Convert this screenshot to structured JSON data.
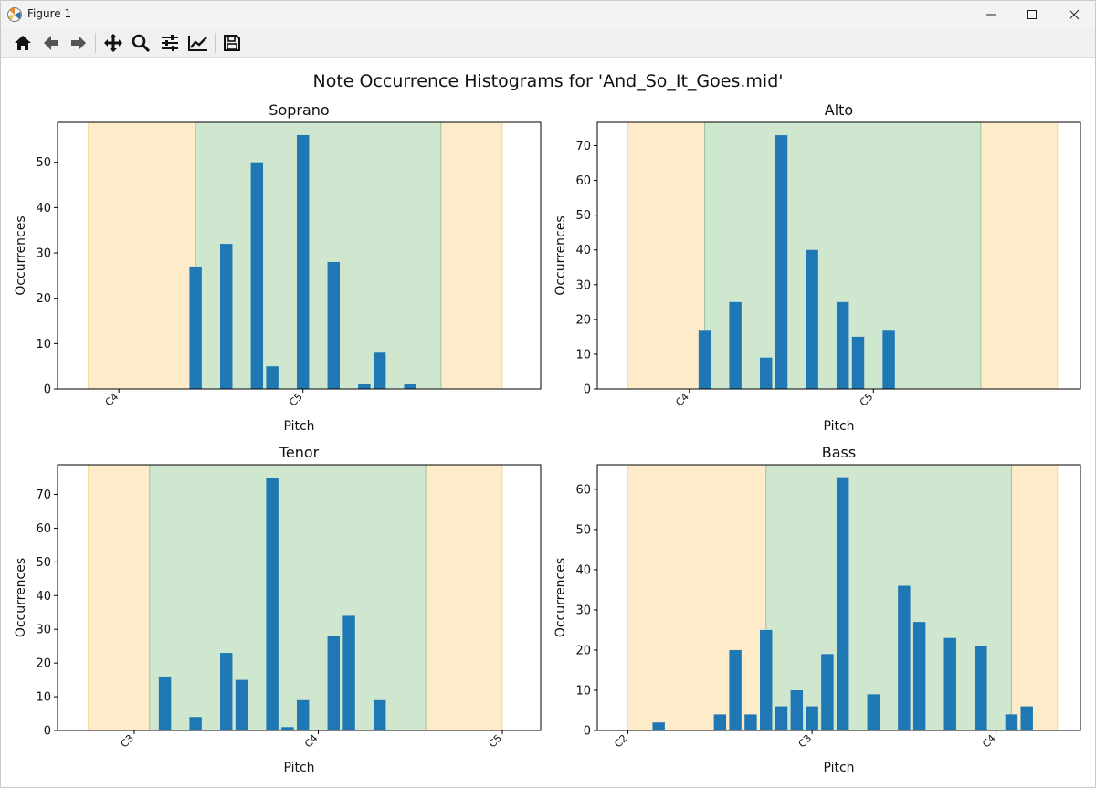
{
  "window": {
    "title": "Figure 1"
  },
  "toolbar": {
    "buttons": [
      {
        "name": "home-button",
        "icon": "home-icon"
      },
      {
        "name": "back-button",
        "icon": "arrow-left-icon"
      },
      {
        "name": "forward-button",
        "icon": "arrow-right-icon"
      },
      {
        "name": "pan-button",
        "icon": "move-icon"
      },
      {
        "name": "zoom-button",
        "icon": "magnifier-icon"
      },
      {
        "name": "configure-subplots-button",
        "icon": "sliders-icon"
      },
      {
        "name": "edit-axis-button",
        "icon": "line-chart-icon"
      },
      {
        "name": "save-button",
        "icon": "floppy-disk-icon"
      }
    ]
  },
  "colors": {
    "bar": "#1f77b4",
    "in_range": "#cfe6cf",
    "out_range": "#fdebc9",
    "in_edge": "#9cc69c",
    "out_edge": "#f5d89a"
  },
  "chart_data": {
    "suptitle": "Note Occurrence Histograms for 'And_So_It_Goes.mid'",
    "charts": [
      {
        "title": "Soprano",
        "type": "bar",
        "xlabel": "Pitch",
        "ylabel": "Occurrences",
        "xlim": [
          56,
          87.5
        ],
        "ylim": [
          0,
          58.8
        ],
        "yticks": [
          0,
          10,
          20,
          30,
          40,
          50
        ],
        "xticks": [
          {
            "label": "C4",
            "value": 60
          },
          {
            "label": "C5",
            "value": 72
          }
        ],
        "outer_range": [
          58,
          85
        ],
        "inner_range": [
          65,
          81
        ],
        "bars": [
          {
            "x": 65,
            "y": 27
          },
          {
            "x": 67,
            "y": 32
          },
          {
            "x": 69,
            "y": 50
          },
          {
            "x": 70,
            "y": 5
          },
          {
            "x": 72,
            "y": 56
          },
          {
            "x": 74,
            "y": 28
          },
          {
            "x": 76,
            "y": 1
          },
          {
            "x": 77,
            "y": 8
          },
          {
            "x": 79,
            "y": 1
          }
        ]
      },
      {
        "title": "Alto",
        "type": "bar",
        "xlabel": "Pitch",
        "ylabel": "Occurrences",
        "xlim": [
          54,
          85.5
        ],
        "ylim": [
          0,
          76.7
        ],
        "yticks": [
          0,
          10,
          20,
          30,
          40,
          50,
          60,
          70
        ],
        "xticks": [
          {
            "label": "C4",
            "value": 60
          },
          {
            "label": "C5",
            "value": 72
          }
        ],
        "outer_range": [
          56,
          84
        ],
        "inner_range": [
          61,
          79
        ],
        "bars": [
          {
            "x": 61,
            "y": 17
          },
          {
            "x": 63,
            "y": 25
          },
          {
            "x": 65,
            "y": 9
          },
          {
            "x": 66,
            "y": 73
          },
          {
            "x": 68,
            "y": 40
          },
          {
            "x": 70,
            "y": 25
          },
          {
            "x": 71,
            "y": 15
          },
          {
            "x": 73,
            "y": 17
          }
        ]
      },
      {
        "title": "Tenor",
        "type": "bar",
        "xlabel": "Pitch",
        "ylabel": "Occurrences",
        "xlim": [
          43,
          74.5
        ],
        "ylim": [
          0,
          78.8
        ],
        "yticks": [
          0,
          10,
          20,
          30,
          40,
          50,
          60,
          70
        ],
        "xticks": [
          {
            "label": "C3",
            "value": 48
          },
          {
            "label": "C4",
            "value": 60
          },
          {
            "label": "C5",
            "value": 72
          }
        ],
        "outer_range": [
          45,
          72
        ],
        "inner_range": [
          49,
          67
        ],
        "bars": [
          {
            "x": 50,
            "y": 16
          },
          {
            "x": 52,
            "y": 4
          },
          {
            "x": 54,
            "y": 23
          },
          {
            "x": 55,
            "y": 15
          },
          {
            "x": 57,
            "y": 75
          },
          {
            "x": 58,
            "y": 1
          },
          {
            "x": 59,
            "y": 9
          },
          {
            "x": 61,
            "y": 28
          },
          {
            "x": 62,
            "y": 34
          },
          {
            "x": 64,
            "y": 9
          }
        ]
      },
      {
        "title": "Bass",
        "type": "bar",
        "xlabel": "Pitch",
        "ylabel": "Occurrences",
        "xlim": [
          34,
          65.5
        ],
        "ylim": [
          0,
          66.1
        ],
        "yticks": [
          0,
          10,
          20,
          30,
          40,
          50,
          60
        ],
        "xticks": [
          {
            "label": "C2",
            "value": 36
          },
          {
            "label": "C3",
            "value": 48
          },
          {
            "label": "C4",
            "value": 60
          }
        ],
        "outer_range": [
          36,
          64
        ],
        "inner_range": [
          45,
          61
        ],
        "bars": [
          {
            "x": 38,
            "y": 2
          },
          {
            "x": 42,
            "y": 4
          },
          {
            "x": 43,
            "y": 20
          },
          {
            "x": 44,
            "y": 4
          },
          {
            "x": 45,
            "y": 25
          },
          {
            "x": 46,
            "y": 6
          },
          {
            "x": 47,
            "y": 10
          },
          {
            "x": 48,
            "y": 6
          },
          {
            "x": 49,
            "y": 19
          },
          {
            "x": 50,
            "y": 63
          },
          {
            "x": 52,
            "y": 9
          },
          {
            "x": 54,
            "y": 36
          },
          {
            "x": 55,
            "y": 27
          },
          {
            "x": 57,
            "y": 23
          },
          {
            "x": 59,
            "y": 21
          },
          {
            "x": 61,
            "y": 4
          },
          {
            "x": 62,
            "y": 6
          }
        ]
      }
    ]
  }
}
